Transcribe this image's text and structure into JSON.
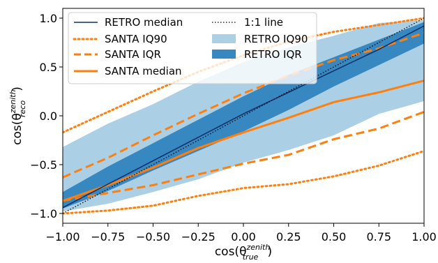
{
  "chart_data": {
    "type": "line",
    "title": "",
    "xlabel": {
      "base": "cos(θ",
      "sub": "true",
      "sup": "zenith",
      "close": ")"
    },
    "ylabel": {
      "base": "cos(θ",
      "sub": "reco",
      "sup": "zenith",
      "close": ")"
    },
    "xlim": [
      -1.0,
      1.0
    ],
    "ylim": [
      -1.1,
      1.1
    ],
    "xticks": [
      -1.0,
      -0.75,
      -0.5,
      -0.25,
      0.0,
      0.25,
      0.5,
      0.75,
      1.0
    ],
    "xtick_labels": [
      "−1.00",
      "−0.75",
      "−0.50",
      "−0.25",
      "0.00",
      "0.25",
      "0.50",
      "0.75",
      "1.00"
    ],
    "yticks": [
      -1.0,
      -0.5,
      0.0,
      0.5,
      1.0
    ],
    "ytick_labels": [
      "−1.0",
      "−0.5",
      "0.0",
      "0.5",
      "1.0"
    ],
    "grid": false,
    "legend_position": "top-left",
    "colors": {
      "retro_iq90": "#abd0e6",
      "retro_iqr": "#3787c0",
      "retro_median": "#08306b",
      "santa": "#ff7f0e",
      "one_to_one": "#000000"
    },
    "x": [
      -1.0,
      -0.75,
      -0.5,
      -0.25,
      0.0,
      0.25,
      0.5,
      0.75,
      1.0
    ],
    "series": [
      {
        "name": "RETRO IQ90",
        "kind": "band",
        "lower": [
          -0.98,
          -0.9,
          -0.78,
          -0.65,
          -0.48,
          -0.35,
          -0.2,
          0.02,
          0.15
        ],
        "upper": [
          -0.32,
          -0.08,
          0.12,
          0.35,
          0.55,
          0.7,
          0.82,
          0.95,
          0.98
        ]
      },
      {
        "name": "RETRO IQR",
        "kind": "band",
        "lower": [
          -0.95,
          -0.77,
          -0.56,
          -0.36,
          -0.16,
          0.06,
          0.3,
          0.52,
          0.74
        ],
        "upper": [
          -0.78,
          -0.52,
          -0.28,
          -0.04,
          0.2,
          0.42,
          0.6,
          0.78,
          0.96
        ]
      },
      {
        "name": "RETRO median",
        "kind": "line",
        "values": [
          -0.94,
          -0.7,
          -0.46,
          -0.22,
          0.02,
          0.24,
          0.46,
          0.68,
          0.92
        ]
      },
      {
        "name": "1:1 line",
        "kind": "line",
        "values": [
          -1.0,
          -0.75,
          -0.5,
          -0.25,
          0.0,
          0.25,
          0.5,
          0.75,
          1.0
        ]
      },
      {
        "name": "SANTA IQ90",
        "kind": "line_pair",
        "lower": [
          -1.0,
          -0.97,
          -0.92,
          -0.82,
          -0.74,
          -0.7,
          -0.62,
          -0.51,
          -0.36
        ],
        "upper": [
          -0.17,
          0.04,
          0.25,
          0.45,
          0.62,
          0.76,
          0.86,
          0.93,
          1.0
        ]
      },
      {
        "name": "SANTA IQR",
        "kind": "line_pair",
        "lower": [
          -0.87,
          -0.79,
          -0.71,
          -0.6,
          -0.49,
          -0.4,
          -0.24,
          -0.13,
          0.04
        ],
        "upper": [
          -0.63,
          -0.43,
          -0.2,
          0.02,
          0.23,
          0.41,
          0.57,
          0.69,
          0.85
        ]
      },
      {
        "name": "SANTA median",
        "kind": "line",
        "values": [
          -0.87,
          -0.71,
          -0.53,
          -0.33,
          -0.17,
          -0.02,
          0.14,
          0.24,
          0.36
        ]
      }
    ],
    "legend": [
      {
        "label": "RETRO median",
        "style": "solid_thin_dark"
      },
      {
        "label": "SANTA IQ90",
        "style": "dotted_orange"
      },
      {
        "label": "SANTA IQR",
        "style": "dashed_orange"
      },
      {
        "label": "SANTA median",
        "style": "solid_orange"
      },
      {
        "label": "1:1 line",
        "style": "dotted_black"
      },
      {
        "label": "RETRO IQ90",
        "style": "patch_light"
      },
      {
        "label": "RETRO IQR",
        "style": "patch_dark"
      }
    ]
  }
}
